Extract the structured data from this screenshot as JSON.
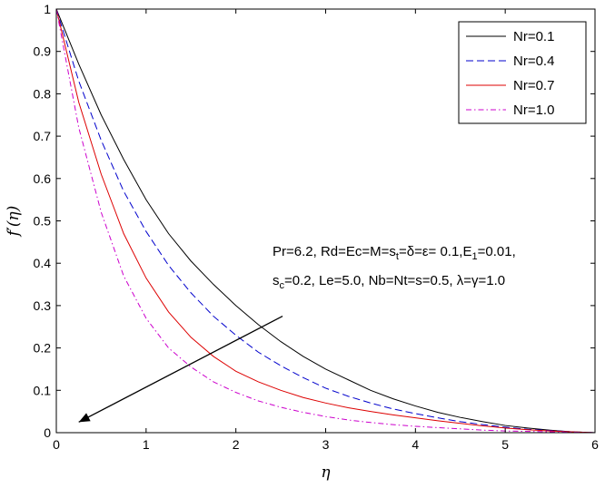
{
  "chart_data": {
    "type": "line",
    "xlabel": "η",
    "ylabel": "f′(η)",
    "xlim": [
      0,
      6
    ],
    "ylim": [
      0,
      1
    ],
    "x_ticks": [
      "0",
      "1",
      "2",
      "3",
      "4",
      "5",
      "6"
    ],
    "y_ticks": [
      "0",
      "0.1",
      "0.2",
      "0.3",
      "0.4",
      "0.5",
      "0.6",
      "0.7",
      "0.8",
      "0.9",
      "1"
    ],
    "grid": false,
    "legend_position": "top-right",
    "x": [
      0,
      0.25,
      0.5,
      0.75,
      1.0,
      1.25,
      1.5,
      1.75,
      2.0,
      2.25,
      2.5,
      2.75,
      3.0,
      3.25,
      3.5,
      3.75,
      4.0,
      4.25,
      4.5,
      4.75,
      5.0,
      5.25,
      5.5,
      5.75,
      6.0
    ],
    "series": [
      {
        "name": "Nr=0.1",
        "color": "#000000",
        "dash": "solid",
        "values": [
          1.0,
          0.87,
          0.75,
          0.645,
          0.55,
          0.47,
          0.405,
          0.35,
          0.3,
          0.255,
          0.215,
          0.18,
          0.15,
          0.125,
          0.1,
          0.08,
          0.063,
          0.048,
          0.036,
          0.026,
          0.017,
          0.011,
          0.006,
          0.002,
          0.0
        ]
      },
      {
        "name": "Nr=0.4",
        "color": "#0000cc",
        "dash": "dashed",
        "values": [
          1.0,
          0.83,
          0.69,
          0.57,
          0.475,
          0.395,
          0.33,
          0.275,
          0.23,
          0.19,
          0.158,
          0.13,
          0.105,
          0.086,
          0.07,
          0.056,
          0.045,
          0.035,
          0.026,
          0.019,
          0.013,
          0.008,
          0.005,
          0.002,
          0.0
        ]
      },
      {
        "name": "Nr=0.7",
        "color": "#dd0000",
        "dash": "solid",
        "values": [
          1.0,
          0.78,
          0.61,
          0.47,
          0.365,
          0.285,
          0.225,
          0.18,
          0.145,
          0.12,
          0.1,
          0.083,
          0.07,
          0.059,
          0.05,
          0.042,
          0.035,
          0.028,
          0.022,
          0.016,
          0.011,
          0.007,
          0.004,
          0.002,
          0.0
        ]
      },
      {
        "name": "Nr=1.0",
        "color": "#cc00cc",
        "dash": "dashdot",
        "values": [
          1.0,
          0.72,
          0.52,
          0.37,
          0.27,
          0.2,
          0.155,
          0.12,
          0.095,
          0.075,
          0.06,
          0.048,
          0.038,
          0.03,
          0.024,
          0.019,
          0.015,
          0.012,
          0.009,
          0.006,
          0.004,
          0.003,
          0.002,
          0.001,
          0.0
        ]
      }
    ],
    "annotation": {
      "line1": "Pr=6.2, Rd=Ec=M=s",
      "line1_sub": "t",
      "line1_rest": "=δ=ε= 0.1,E",
      "line1_sub2": "1",
      "line1_end": "=0.01,",
      "line2_start": "s",
      "line2_sub": "c",
      "line2_rest": "=0.2, Le=5.0, Nb=Nt=s=0.5, λ=γ=1.0",
      "arrow_from": [
        2.52,
        0.275
      ],
      "arrow_to": [
        0.25,
        0.025
      ]
    }
  }
}
